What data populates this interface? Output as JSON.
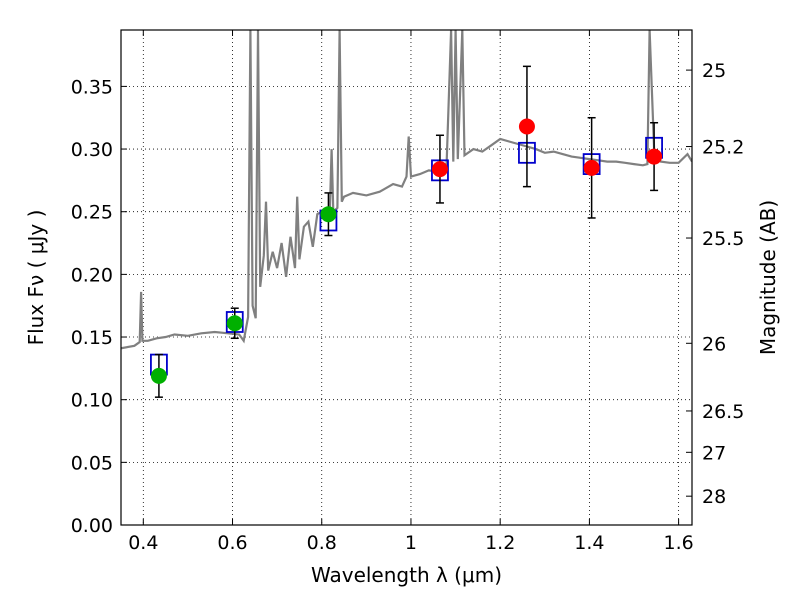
{
  "chart_data": {
    "type": "scatter",
    "xlabel": "Wavelength  λ (μm)",
    "ylabel": "Flux  Fν  ( μJy )",
    "ylabel_right": "Magnitude (AB)",
    "xlim": [
      0.35,
      1.63
    ],
    "ylim": [
      0.0,
      0.395
    ],
    "grid": true,
    "x_ticks": [
      0.4,
      0.6,
      0.8,
      1.0,
      1.2,
      1.4,
      1.6
    ],
    "x_tick_labels": [
      "0.4",
      "0.6",
      "0.8",
      "1",
      "1.2",
      "1.4",
      "1.6"
    ],
    "y_ticks": [
      0.0,
      0.05,
      0.1,
      0.15,
      0.2,
      0.25,
      0.3,
      0.35
    ],
    "y_tick_labels": [
      "0.00",
      "0.05",
      "0.10",
      "0.15",
      "0.20",
      "0.25",
      "0.30",
      "0.35"
    ],
    "right_ticks": [
      {
        "label": "25",
        "flux": 0.363
      },
      {
        "label": "25.2",
        "flux": 0.302
      },
      {
        "label": "25.5",
        "flux": 0.229
      },
      {
        "label": "26",
        "flux": 0.145
      },
      {
        "label": "26.5",
        "flux": 0.091
      },
      {
        "label": "27",
        "flux": 0.058
      },
      {
        "label": "28",
        "flux": 0.023
      }
    ],
    "model_spectrum": {
      "color": "#808080",
      "points": [
        [
          0.35,
          0.141
        ],
        [
          0.38,
          0.143
        ],
        [
          0.392,
          0.146
        ],
        [
          0.395,
          0.186
        ],
        [
          0.398,
          0.147
        ],
        [
          0.41,
          0.147
        ],
        [
          0.43,
          0.149
        ],
        [
          0.45,
          0.15
        ],
        [
          0.47,
          0.152
        ],
        [
          0.5,
          0.151
        ],
        [
          0.53,
          0.153
        ],
        [
          0.56,
          0.154
        ],
        [
          0.59,
          0.153
        ],
        [
          0.615,
          0.152
        ],
        [
          0.625,
          0.147
        ],
        [
          0.635,
          0.166
        ],
        [
          0.64,
          0.395
        ],
        [
          0.645,
          0.175
        ],
        [
          0.652,
          0.165
        ],
        [
          0.657,
          0.395
        ],
        [
          0.662,
          0.19
        ],
        [
          0.67,
          0.215
        ],
        [
          0.675,
          0.258
        ],
        [
          0.68,
          0.203
        ],
        [
          0.69,
          0.218
        ],
        [
          0.7,
          0.205
        ],
        [
          0.71,
          0.225
        ],
        [
          0.72,
          0.198
        ],
        [
          0.73,
          0.23
        ],
        [
          0.74,
          0.205
        ],
        [
          0.745,
          0.262
        ],
        [
          0.75,
          0.212
        ],
        [
          0.76,
          0.238
        ],
        [
          0.77,
          0.242
        ],
        [
          0.78,
          0.222
        ],
        [
          0.79,
          0.248
        ],
        [
          0.8,
          0.25
        ],
        [
          0.81,
          0.249
        ],
        [
          0.818,
          0.249
        ],
        [
          0.822,
          0.3
        ],
        [
          0.826,
          0.25
        ],
        [
          0.835,
          0.253
        ],
        [
          0.84,
          0.395
        ],
        [
          0.845,
          0.258
        ],
        [
          0.85,
          0.262
        ],
        [
          0.87,
          0.265
        ],
        [
          0.9,
          0.263
        ],
        [
          0.93,
          0.266
        ],
        [
          0.96,
          0.272
        ],
        [
          0.98,
          0.27
        ],
        [
          0.99,
          0.278
        ],
        [
          0.995,
          0.31
        ],
        [
          1.0,
          0.278
        ],
        [
          1.02,
          0.28
        ],
        [
          1.04,
          0.283
        ],
        [
          1.06,
          0.282
        ],
        [
          1.08,
          0.288
        ],
        [
          1.09,
          0.395
        ],
        [
          1.095,
          0.29
        ],
        [
          1.1,
          0.395
        ],
        [
          1.105,
          0.292
        ],
        [
          1.115,
          0.395
        ],
        [
          1.12,
          0.295
        ],
        [
          1.14,
          0.3
        ],
        [
          1.16,
          0.298
        ],
        [
          1.18,
          0.303
        ],
        [
          1.2,
          0.308
        ],
        [
          1.22,
          0.306
        ],
        [
          1.24,
          0.304
        ],
        [
          1.26,
          0.302
        ],
        [
          1.28,
          0.3
        ],
        [
          1.3,
          0.297
        ],
        [
          1.32,
          0.298
        ],
        [
          1.34,
          0.296
        ],
        [
          1.36,
          0.294
        ],
        [
          1.38,
          0.293
        ],
        [
          1.4,
          0.292
        ],
        [
          1.42,
          0.291
        ],
        [
          1.44,
          0.29
        ],
        [
          1.46,
          0.29
        ],
        [
          1.48,
          0.289
        ],
        [
          1.5,
          0.288
        ],
        [
          1.52,
          0.287
        ],
        [
          1.53,
          0.288
        ],
        [
          1.535,
          0.395
        ],
        [
          1.545,
          0.3
        ],
        [
          1.56,
          0.29
        ],
        [
          1.58,
          0.289
        ],
        [
          1.6,
          0.289
        ],
        [
          1.62,
          0.296
        ],
        [
          1.63,
          0.29
        ]
      ]
    },
    "model_photometry": {
      "color": "#0000cc",
      "points": [
        [
          0.435,
          0.128
        ],
        [
          0.605,
          0.162
        ],
        [
          0.815,
          0.243
        ],
        [
          1.065,
          0.283
        ],
        [
          1.26,
          0.297
        ],
        [
          1.405,
          0.288
        ],
        [
          1.545,
          0.301
        ]
      ]
    },
    "observed": {
      "points": [
        {
          "x": 0.435,
          "y": 0.119,
          "err": 0.017,
          "color": "#00b000"
        },
        {
          "x": 0.605,
          "y": 0.161,
          "err": 0.012,
          "color": "#00b000"
        },
        {
          "x": 0.815,
          "y": 0.248,
          "err": 0.017,
          "color": "#00b000"
        },
        {
          "x": 1.065,
          "y": 0.284,
          "err": 0.027,
          "color": "#ff0000"
        },
        {
          "x": 1.26,
          "y": 0.318,
          "err": 0.048,
          "color": "#ff0000"
        },
        {
          "x": 1.405,
          "y": 0.285,
          "err": 0.04,
          "color": "#ff0000"
        },
        {
          "x": 1.545,
          "y": 0.294,
          "err": 0.027,
          "color": "#ff0000"
        }
      ]
    }
  }
}
